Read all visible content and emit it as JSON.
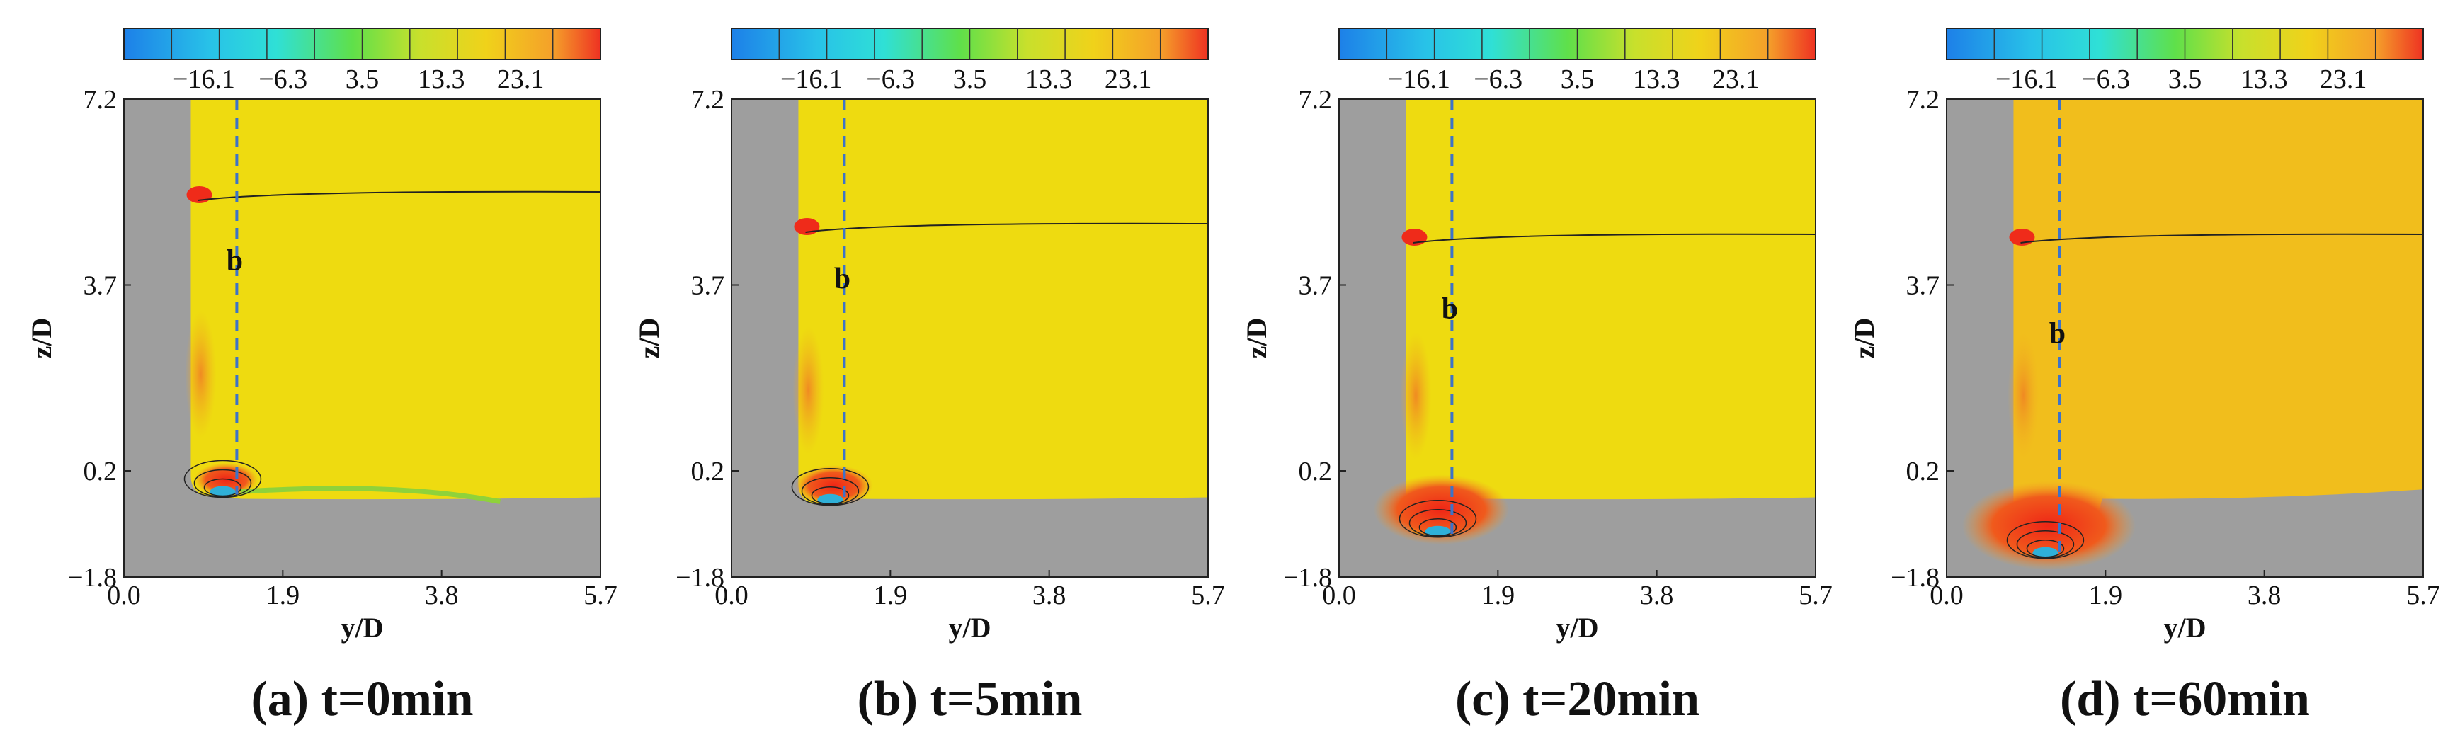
{
  "colors": {
    "bed": "#9e9e9e",
    "field_main": "#eedb10",
    "field_60min": "#f1be1c",
    "contour": "#222222",
    "hot": "#ef2b1a",
    "warm": "#f08a22",
    "cool": "#2fb0d8",
    "green": "#8fd23a",
    "dashed_line": "#3d73c8"
  },
  "chart_data": [
    {
      "type": "heatmap",
      "panel": "a",
      "title": "(a) t=0min",
      "xlabel": "y/D",
      "ylabel": "z/D",
      "xlim": [
        0.0,
        5.7
      ],
      "ylim": [
        -1.8,
        7.2
      ],
      "xticks": [
        "0.0",
        "1.9",
        "3.8",
        "5.7"
      ],
      "yticks": [
        "7.2",
        "3.7",
        "0.2",
        "-1.8"
      ],
      "colorbar_ticks": [
        "-16.1",
        "-6.3",
        "3.5",
        "13.3",
        "23.1"
      ],
      "colorbar_range": [
        -26,
        33
      ],
      "pier_face_y": 0.8,
      "bed_level_z": -0.3,
      "scour_depth_z": -0.3,
      "free_surface_z": 5.4,
      "marker_line": {
        "label": "b",
        "y": 1.35
      },
      "field_color": "field_main"
    },
    {
      "type": "heatmap",
      "panel": "b",
      "title": "(b) t=5min",
      "xlabel": "y/D",
      "ylabel": "z/D",
      "xlim": [
        0.0,
        5.7
      ],
      "ylim": [
        -1.8,
        7.2
      ],
      "xticks": [
        "0.0",
        "1.9",
        "3.8",
        "5.7"
      ],
      "yticks": [
        "7.2",
        "3.7",
        "0.2",
        "-1.8"
      ],
      "colorbar_ticks": [
        "-16.1",
        "-6.3",
        "3.5",
        "13.3",
        "23.1"
      ],
      "colorbar_range": [
        -26,
        33
      ],
      "pier_face_y": 0.8,
      "bed_level_z": -0.3,
      "scour_depth_z": -0.45,
      "free_surface_z": 4.8,
      "marker_line": {
        "label": "b",
        "y": 1.35
      },
      "field_color": "field_main"
    },
    {
      "type": "heatmap",
      "panel": "c",
      "title": "(c) t=20min",
      "xlabel": "y/D",
      "ylabel": "z/D",
      "xlim": [
        0.0,
        5.7
      ],
      "ylim": [
        -1.8,
        7.2
      ],
      "xticks": [
        "0.0",
        "1.9",
        "3.8",
        "5.7"
      ],
      "yticks": [
        "7.2",
        "3.7",
        "0.2",
        "-1.8"
      ],
      "colorbar_ticks": [
        "-16.1",
        "-6.3",
        "3.5",
        "13.3",
        "23.1"
      ],
      "colorbar_range": [
        -26,
        33
      ],
      "pier_face_y": 0.8,
      "bed_level_z": -0.3,
      "scour_depth_z": -1.05,
      "free_surface_z": 4.6,
      "marker_line": {
        "label": "b",
        "y": 1.35
      },
      "field_color": "field_main"
    },
    {
      "type": "heatmap",
      "panel": "d",
      "title": "(d) t=60min",
      "xlabel": "y/D",
      "ylabel": "z/D",
      "xlim": [
        0.0,
        5.7
      ],
      "ylim": [
        -1.8,
        7.2
      ],
      "xticks": [
        "0.0",
        "1.9",
        "3.8",
        "5.7"
      ],
      "yticks": [
        "7.2",
        "3.7",
        "0.2",
        "-1.8"
      ],
      "colorbar_ticks": [
        "-16.1",
        "-6.3",
        "3.5",
        "13.3",
        "23.1"
      ],
      "colorbar_range": [
        -26,
        33
      ],
      "pier_face_y": 0.8,
      "bed_level_z": -0.3,
      "scour_depth_z": -1.45,
      "free_surface_z": 4.6,
      "marker_line": {
        "label": "b",
        "y": 1.35
      },
      "field_color": "field_60min"
    }
  ]
}
